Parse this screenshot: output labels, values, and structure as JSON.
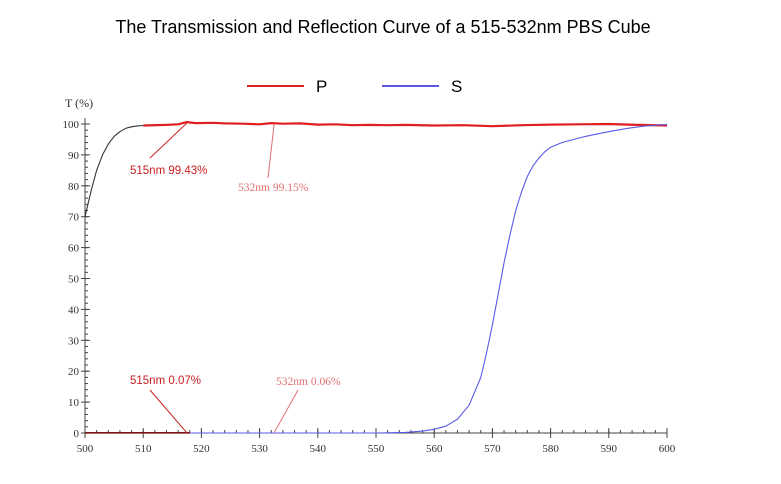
{
  "chart_data": {
    "type": "line",
    "title": "The Transmission and Reflection Curve of a 515-532nm PBS Cube",
    "ylabel": "T (%)",
    "xlabel": "",
    "xlim": [
      500,
      600
    ],
    "ylim": [
      0,
      100
    ],
    "x_ticks": [
      "500",
      "510",
      "520",
      "530",
      "540",
      "550",
      "560",
      "570",
      "580",
      "590",
      "600"
    ],
    "y_ticks": [
      "0",
      "10",
      "20",
      "30",
      "40",
      "50",
      "60",
      "70",
      "80",
      "90",
      "100"
    ],
    "legend": {
      "placement": "top-center"
    },
    "series": [
      {
        "name": "P",
        "color": "#e02020",
        "x": [
          510,
          514,
          516,
          517.5,
          519,
          522,
          524,
          527,
          530,
          532,
          534,
          537,
          540,
          543,
          546,
          549,
          552,
          555,
          560,
          565,
          570,
          575,
          580,
          585,
          590,
          595,
          600
        ],
        "y": [
          99.5,
          99.7,
          99.9,
          100.6,
          100.3,
          100.4,
          100.2,
          100.1,
          99.9,
          100.3,
          100.1,
          100.2,
          99.8,
          99.9,
          99.6,
          99.7,
          99.6,
          99.7,
          99.5,
          99.6,
          99.3,
          99.6,
          99.8,
          99.9,
          100.0,
          99.7,
          99.5
        ]
      },
      {
        "name": "S",
        "color": "#5a5ae6",
        "x": [
          500,
          550,
          555,
          558,
          560,
          562,
          564,
          566,
          568,
          569,
          570,
          571,
          572,
          573,
          574,
          575,
          576,
          577,
          578,
          579,
          580,
          582,
          584,
          586,
          588,
          590,
          592,
          594,
          596,
          598,
          600
        ],
        "y": [
          0,
          0,
          0.2,
          0.6,
          1.2,
          2.2,
          4.5,
          9,
          18,
          26,
          35,
          45,
          55,
          64,
          72,
          78,
          83,
          86.5,
          89,
          91,
          92.5,
          94,
          95,
          96,
          96.8,
          97.5,
          98.2,
          98.8,
          99.3,
          99.6,
          99.8
        ]
      },
      {
        "name": "",
        "color": "#333333",
        "x": [
          500,
          501,
          502,
          503,
          504,
          505,
          506,
          507,
          508,
          509,
          510
        ],
        "y": [
          70,
          78,
          85,
          90,
          93.5,
          96,
          97.5,
          98.6,
          99.1,
          99.4,
          99.5
        ]
      },
      {
        "name": "",
        "color": "#7a1010",
        "x": [
          500,
          518
        ],
        "y": [
          0.07,
          0.07
        ]
      }
    ],
    "annotations": [
      {
        "text": "515nm 99.43%",
        "color": "#c82020",
        "x": 517.5,
        "y": 100.3
      },
      {
        "text": "532nm 99.15%",
        "color": "#e07070",
        "x": 532.5,
        "y": 100.1
      },
      {
        "text": "515nm 0.07%",
        "color": "#c82020",
        "x": 517.5,
        "y": 0.07
      },
      {
        "text": "532nm 0.06%",
        "color": "#e07070",
        "x": 532.5,
        "y": 0.06
      }
    ]
  }
}
